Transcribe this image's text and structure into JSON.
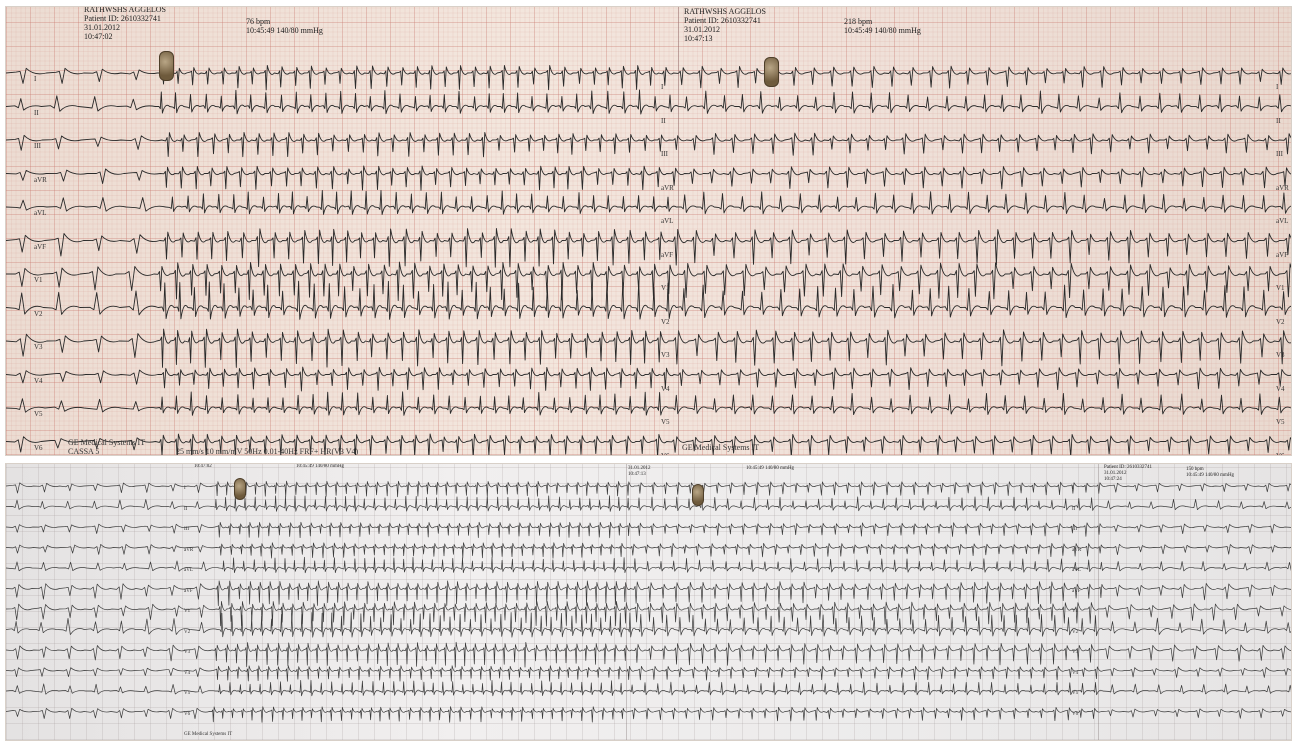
{
  "top": {
    "headers": [
      {
        "name": "RATHWSHS AGGELOS",
        "patient_id": "Patient ID: 2610332741",
        "date": "31.01.2012",
        "time": "10:47:02",
        "rate": "76 bpm",
        "vitals": "10:45:49 140/80 mmHg"
      },
      {
        "name": "RATHWSHS AGGELOS",
        "patient_id": "Patient ID: 2610332741",
        "date": "31.01.2012",
        "time": "10:47:13",
        "rate": "218 bpm",
        "vitals": "10:45:49 140/80 mmHg"
      }
    ],
    "leads": [
      "I",
      "II",
      "III",
      "aVR",
      "aVL",
      "aVF",
      "V1",
      "V2",
      "V3",
      "V4",
      "V5",
      "V6"
    ],
    "footers": [
      {
        "vendor": "GE Medical Systems IT",
        "device": "CASSA 5",
        "settings": "25 mm/s 10 mm/mV 50Hz 0.01-40Hz FRF+ HR(V3 V4)"
      },
      {
        "vendor": "GE Medical Systems IT"
      }
    ]
  },
  "bottom": {
    "headers": [
      {
        "time": "10:47:02",
        "vitals": "10:45:49 140/80 mmHg"
      },
      {
        "date": "31.01.2012",
        "time": "10:47:13",
        "vitals": "10:45:49 140/80 mmHg"
      },
      {
        "patient_id": "Patient ID: 2610332741",
        "date": "31.01.2012",
        "time": "10:47:24",
        "rate": "150 bpm",
        "vitals": "10:45:49 140/80 mmHg"
      }
    ],
    "leads": [
      "I",
      "II",
      "III",
      "aVR",
      "aVL",
      "aVF",
      "V1",
      "V2",
      "V3",
      "V4",
      "V5",
      "V6"
    ],
    "footers": [
      {
        "vendor": "GE Medical Systems IT"
      }
    ]
  }
}
